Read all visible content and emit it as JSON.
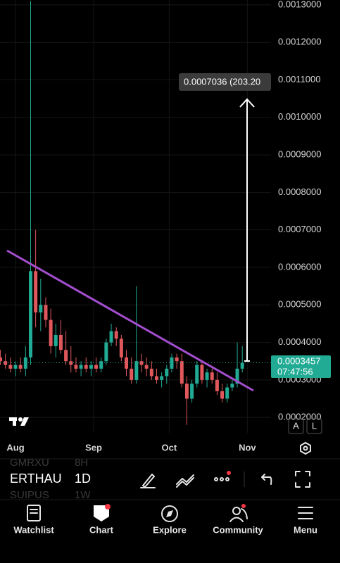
{
  "chart_data": {
    "type": "candlestick",
    "categories": [
      null,
      null,
      null,
      null,
      null,
      null,
      null,
      null,
      null,
      null,
      null,
      null,
      null,
      null,
      null,
      null,
      null,
      null,
      null,
      null,
      null,
      null,
      null,
      null,
      null,
      null,
      null,
      null,
      null,
      null,
      null,
      null,
      null,
      null,
      null,
      null,
      null,
      null,
      null,
      null,
      null,
      null,
      null,
      null,
      null,
      null,
      null,
      null,
      null
    ],
    "open": [
      0.00036,
      0.00035,
      0.00034,
      0.00033,
      0.00034,
      0.00033,
      0.00036,
      0.00059,
      0.00048,
      0.0005,
      0.00046,
      0.00039,
      0.00042,
      0.00038,
      0.00035,
      0.00034,
      0.00033,
      0.00034,
      0.00033,
      0.00034,
      0.00033,
      0.00035,
      0.0004,
      0.00043,
      0.00041,
      0.00036,
      0.00033,
      0.0003,
      0.00035,
      0.00034,
      0.00033,
      0.00031,
      0.0003,
      0.00031,
      0.00033,
      0.00036,
      0.00035,
      0.00029,
      0.00025,
      0.00029,
      0.00034,
      0.0003,
      0.00032,
      0.0003,
      0.00027,
      0.00025,
      0.00028,
      0.00029,
      0.00033
    ],
    "high": [
      0.00038,
      0.00037,
      0.00036,
      0.00035,
      0.00036,
      0.00039,
      0.00131,
      0.0007,
      0.00057,
      0.00052,
      0.00049,
      0.00045,
      0.00046,
      0.00043,
      0.00039,
      0.00036,
      0.00035,
      0.00036,
      0.00035,
      0.00036,
      0.00036,
      0.00041,
      0.00045,
      0.00044,
      0.00042,
      0.00038,
      0.00036,
      0.00055,
      0.00037,
      0.00036,
      0.00035,
      0.00033,
      0.00032,
      0.00034,
      0.00037,
      0.00037,
      0.00037,
      0.00031,
      0.0003,
      0.00035,
      0.00035,
      0.00033,
      0.00033,
      0.00032,
      0.00029,
      0.00029,
      0.0003,
      0.0004,
      0.00039
    ],
    "low": [
      0.00034,
      0.00033,
      0.00032,
      0.00031,
      0.00032,
      0.00031,
      0.00034,
      0.00044,
      0.00043,
      0.00044,
      0.00037,
      0.00036,
      0.00037,
      0.00034,
      0.00032,
      0.00032,
      0.00031,
      0.00032,
      0.00031,
      0.00032,
      0.00032,
      0.00034,
      0.00039,
      0.00039,
      0.00035,
      0.00031,
      0.00029,
      0.00029,
      0.00032,
      0.00031,
      0.0003,
      0.00029,
      0.00028,
      0.00029,
      0.00032,
      0.00033,
      0.00028,
      0.00018,
      0.00024,
      0.00028,
      0.00029,
      0.00028,
      0.00029,
      0.00026,
      0.00024,
      0.00024,
      0.00027,
      0.00028,
      0.00032
    ],
    "close": [
      0.00035,
      0.00034,
      0.00033,
      0.00034,
      0.00033,
      0.00036,
      0.00059,
      0.00048,
      0.0005,
      0.00046,
      0.00039,
      0.00042,
      0.00038,
      0.00035,
      0.00034,
      0.00033,
      0.00034,
      0.00033,
      0.00034,
      0.00033,
      0.00035,
      0.0004,
      0.00043,
      0.00041,
      0.00036,
      0.00033,
      0.0003,
      0.00035,
      0.00034,
      0.00033,
      0.00031,
      0.0003,
      0.00031,
      0.00033,
      0.00036,
      0.00035,
      0.00029,
      0.00025,
      0.00029,
      0.00034,
      0.0003,
      0.00032,
      0.0003,
      0.00027,
      0.00025,
      0.00028,
      0.00029,
      0.00033,
      0.0003457
    ],
    "up_color": "#22ab94",
    "down_color": "#e0575c",
    "xlim": [
      -0.075,
      53.7
    ],
    "xticks": [
      {
        "value": 3,
        "label": "Aug"
      },
      {
        "value": 18.5,
        "label": "Sep"
      },
      {
        "value": 33.5,
        "label": "Oct"
      },
      {
        "value": 49,
        "label": "Nov"
      }
    ],
    "ylim": [
      0.000159,
      0.001313
    ],
    "yticks": [
      {
        "value": 0.0002,
        "label": "0.0002000"
      },
      {
        "value": 0.0003,
        "label": "0.0003000"
      },
      {
        "value": 0.0004,
        "label": "0.0004000"
      },
      {
        "value": 0.0005,
        "label": "0.0005000"
      },
      {
        "value": 0.0006,
        "label": "0.0006000"
      },
      {
        "value": 0.0007,
        "label": "0.0007000"
      },
      {
        "value": 0.0008,
        "label": "0.0008000"
      },
      {
        "value": 0.0009,
        "label": "0.0009000"
      },
      {
        "value": 0.001,
        "label": "0.0010000"
      },
      {
        "value": 0.0011,
        "label": "0.0011000"
      },
      {
        "value": 0.0012,
        "label": "0.0012000"
      },
      {
        "value": 0.0013,
        "label": "0.0013000"
      }
    ],
    "grid": true,
    "countdown": "07:47:56",
    "measure_label": "0.0007036 (203.20"
  },
  "toolbar": {
    "symbol": "ERTHAU",
    "interval": "1D",
    "prev_symbol": "GMRXU",
    "prev_interval": "8H",
    "next_symbol": "SUIPUS",
    "next_interval": "1W",
    "scale_auto": "A",
    "scale_log": "L"
  },
  "tabs": [
    "Watchlist",
    "Chart",
    "Explore",
    "Community",
    "Menu"
  ]
}
